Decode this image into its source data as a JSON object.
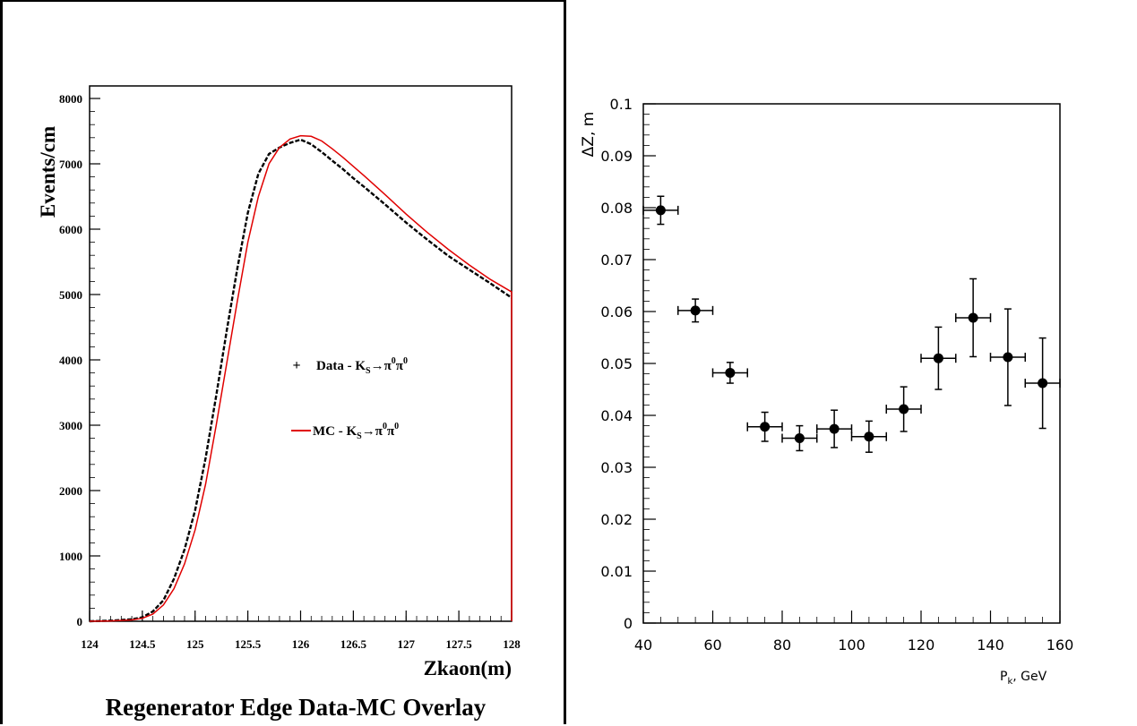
{
  "chart_data": [
    {
      "type": "line",
      "title": "Regenerator Edge Data-MC Overlay",
      "xlabel": "Zkaon(m)",
      "ylabel": "Events/cm",
      "xlim": [
        124,
        128
      ],
      "ylim": [
        0,
        8200
      ],
      "xticks": [
        "124",
        "124.5",
        "125",
        "125.5",
        "126",
        "126.5",
        "127",
        "127.5",
        "128"
      ],
      "yticks": [
        "0",
        "1000",
        "2000",
        "3000",
        "4000",
        "5000",
        "6000",
        "7000",
        "8000"
      ],
      "legend": {
        "placement": "center-right",
        "entries": [
          {
            "marker": "+",
            "prefix": "Data - K",
            "sub": "S",
            "suffix": "→π",
            "sup1": "0",
            "mid": "π",
            "sup2": "0"
          },
          {
            "marker": "line",
            "prefix": "MC - K",
            "sub": "S",
            "suffix": "→π",
            "sup1": "0",
            "mid": "π",
            "sup2": "0"
          }
        ]
      },
      "series": [
        {
          "name": "Data - KS→π0π0",
          "color": "#000000",
          "x": [
            124.0,
            124.2,
            124.4,
            124.5,
            124.6,
            124.7,
            124.8,
            124.9,
            125.0,
            125.1,
            125.2,
            125.3,
            125.4,
            125.5,
            125.6,
            125.7,
            125.8,
            125.9,
            126.0,
            126.1,
            126.2,
            126.3,
            126.4,
            126.5,
            126.6,
            126.8,
            127.0,
            127.2,
            127.4,
            127.6,
            127.8,
            128.0
          ],
          "y": [
            0,
            10,
            30,
            60,
            150,
            320,
            650,
            1100,
            1700,
            2500,
            3450,
            4450,
            5400,
            6250,
            6850,
            7150,
            7250,
            7320,
            7370,
            7300,
            7180,
            7050,
            6920,
            6780,
            6650,
            6380,
            6100,
            5840,
            5590,
            5380,
            5170,
            4950
          ]
        },
        {
          "name": "MC - KS→π0π0",
          "color": "#e00000",
          "x": [
            124.0,
            124.2,
            124.4,
            124.5,
            124.6,
            124.7,
            124.8,
            124.9,
            125.0,
            125.1,
            125.2,
            125.3,
            125.4,
            125.5,
            125.6,
            125.7,
            125.8,
            125.9,
            126.0,
            126.1,
            126.2,
            126.3,
            126.4,
            126.5,
            126.6,
            126.8,
            127.0,
            127.2,
            127.4,
            127.6,
            127.8,
            128.0
          ],
          "y": [
            0,
            5,
            20,
            45,
            110,
            250,
            500,
            880,
            1400,
            2100,
            3000,
            3950,
            4900,
            5800,
            6500,
            7000,
            7250,
            7380,
            7430,
            7420,
            7350,
            7230,
            7100,
            6960,
            6820,
            6530,
            6230,
            5950,
            5690,
            5450,
            5230,
            5040
          ]
        }
      ]
    },
    {
      "type": "scatter",
      "xlabel": "P",
      "xlabel_sub": "k",
      "xlabel_unit": ",   GeV",
      "ylabel": "ΔZ,  m",
      "xlim": [
        40,
        160
      ],
      "ylim": [
        0,
        0.1
      ],
      "xticks": [
        "40",
        "60",
        "80",
        "100",
        "120",
        "140",
        "160"
      ],
      "yticks": [
        "0",
        "0.01",
        "0.02",
        "0.03",
        "0.04",
        "0.05",
        "0.06",
        "0.07",
        "0.08",
        "0.09",
        "0.1"
      ],
      "series": [
        {
          "x": [
            45,
            55,
            65,
            75,
            85,
            95,
            105,
            115,
            125,
            135,
            145,
            155
          ],
          "y": [
            0.0795,
            0.0602,
            0.0482,
            0.0378,
            0.0356,
            0.0374,
            0.0359,
            0.0412,
            0.051,
            0.0588,
            0.0512,
            0.0462
          ],
          "xerr": [
            5,
            5,
            5,
            5,
            5,
            5,
            5,
            5,
            5,
            5,
            5,
            5
          ],
          "yerr": [
            0.0027,
            0.0022,
            0.002,
            0.0028,
            0.0024,
            0.0036,
            0.003,
            0.0043,
            0.006,
            0.0075,
            0.0093,
            0.0087
          ]
        }
      ]
    }
  ]
}
